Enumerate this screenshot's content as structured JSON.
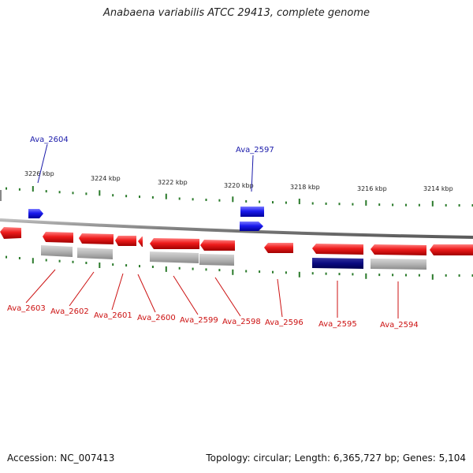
{
  "title": "Anabaena variabilis ATCC 29413, complete genome",
  "footer": {
    "accession": "Accession: NC_007413",
    "summary": "Topology: circular; Length: 6,365,727 bp; Genes: 5,104"
  },
  "colors": {
    "forward_gene": "#1a1aee",
    "reverse_gene": "#ee1a1a",
    "gray_feature": "#b0b0b0",
    "navy_feature": "#0a0a80",
    "tick": "#2a7a2a",
    "backbone": "#808080",
    "label_forward": "#1a1aaa",
    "label_reverse": "#cc1111"
  },
  "scale": {
    "ticks": [
      {
        "label": "3226 kbp"
      },
      {
        "label": "3224 kbp"
      },
      {
        "label": "3222 kbp"
      },
      {
        "label": "3220 kbp"
      },
      {
        "label": "3218 kbp"
      },
      {
        "label": "3216 kbp"
      },
      {
        "label": "3214 kbp"
      }
    ]
  },
  "labels": {
    "forward": [
      {
        "name": "Ava_2604"
      },
      {
        "name": "Ava_2597"
      }
    ],
    "reverse": [
      {
        "name": "Ava_2603"
      },
      {
        "name": "Ava_2602"
      },
      {
        "name": "Ava_2601"
      },
      {
        "name": "Ava_2600"
      },
      {
        "name": "Ava_2599"
      },
      {
        "name": "Ava_2598"
      },
      {
        "name": "Ava_2596"
      },
      {
        "name": "Ava_2595"
      },
      {
        "name": "Ava_2594"
      }
    ]
  }
}
